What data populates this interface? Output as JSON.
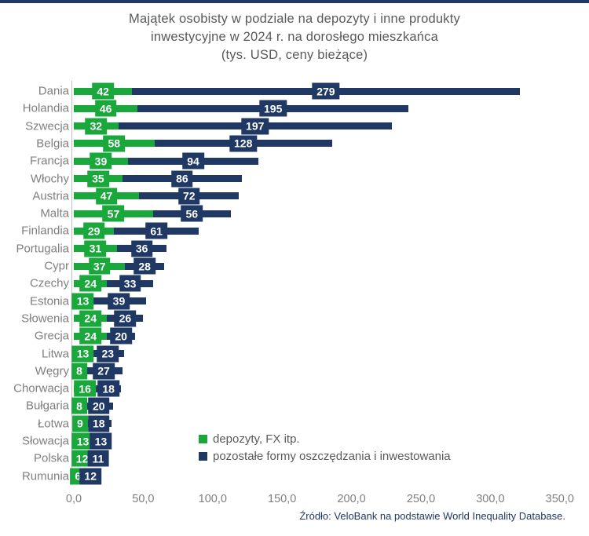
{
  "title": {
    "line1": "Majątek osobisty w podziale na depozyty i inne produkty",
    "line2": "inwestycyjne w 2024 r. na dorosłego mieszkańca",
    "line3": "(tys. USD, ceny bieżące)"
  },
  "chart_data": {
    "type": "bar",
    "orientation": "horizontal",
    "stacked": true,
    "title": "Majątek osobisty w podziale na depozyty i inne produkty inwestycyjne w 2024 r. na dorosłego mieszkańca (tys. USD, ceny bieżące)",
    "categories": [
      "Dania",
      "Holandia",
      "Szwecja",
      "Belgia",
      "Francja",
      "Włochy",
      "Austria",
      "Malta",
      "Finlandia",
      "Portugalia",
      "Cypr",
      "Czechy",
      "Estonia",
      "Słowenia",
      "Grecja",
      "Litwa",
      "Węgry",
      "Chorwacja",
      "Bułgaria",
      "Łotwa",
      "Słowacja",
      "Polska",
      "Rumunia"
    ],
    "series": [
      {
        "name": "depozyty, FX itp.",
        "color": "#1aa73c",
        "values": [
          42,
          46,
          32,
          58,
          39,
          35,
          47,
          57,
          29,
          31,
          37,
          24,
          13,
          24,
          24,
          13,
          8,
          16,
          8,
          9,
          13,
          12,
          6
        ]
      },
      {
        "name": "pozostałe formy oszczędzania i inwestowania",
        "color": "#1f3864",
        "values": [
          279,
          195,
          197,
          128,
          94,
          86,
          72,
          56,
          61,
          36,
          28,
          33,
          39,
          26,
          20,
          23,
          27,
          18,
          20,
          18,
          13,
          11,
          12
        ]
      }
    ],
    "xlim": [
      0,
      350
    ],
    "x_tick_labels": [
      "0,0",
      "50,0",
      "100,0",
      "150,0",
      "200,0",
      "250,0",
      "300,0",
      "350,0"
    ],
    "x_tick_values": [
      0,
      50,
      100,
      150,
      200,
      250,
      300,
      350
    ],
    "grid": false,
    "data_labels": "inside-center, white bold on series-color box",
    "legend_position": "inside-bottom-right"
  },
  "colors": {
    "deposits_green": "#1aa73c",
    "other_navy": "#1f3864",
    "title_gray": "#595959",
    "label_gray": "#7f7f7f",
    "top_border": "#1f3864"
  },
  "footer": {
    "source": "Źródło: VeloBank na podstawie World Inequality Database."
  }
}
